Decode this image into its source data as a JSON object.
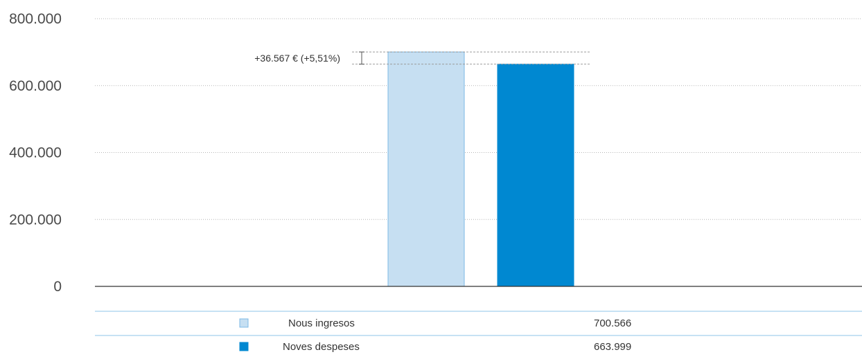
{
  "chart_data": {
    "type": "bar",
    "title": "",
    "xlabel": "",
    "ylabel": "",
    "ylim": [
      0,
      800000
    ],
    "yticks": [
      {
        "value": 0,
        "label": "0"
      },
      {
        "value": 200000,
        "label": "200.000"
      },
      {
        "value": 400000,
        "label": "400.000"
      },
      {
        "value": 600000,
        "label": "600.000"
      },
      {
        "value": 800000,
        "label": "800.000"
      }
    ],
    "grid": true,
    "legend_position": "bottom",
    "series": [
      {
        "name": "Nous ingresos",
        "value": 700566,
        "value_label": "700.566",
        "color": "#c6dff2",
        "border_color": "#7cb8e6"
      },
      {
        "name": "Noves despeses",
        "value": 663999,
        "value_label": "663.999",
        "color": "#0088d1",
        "border_color": "#0088d1"
      }
    ],
    "annotation": {
      "text": "+36.567 € (+5,51%)",
      "from_value": 663999,
      "to_value": 700566
    }
  }
}
